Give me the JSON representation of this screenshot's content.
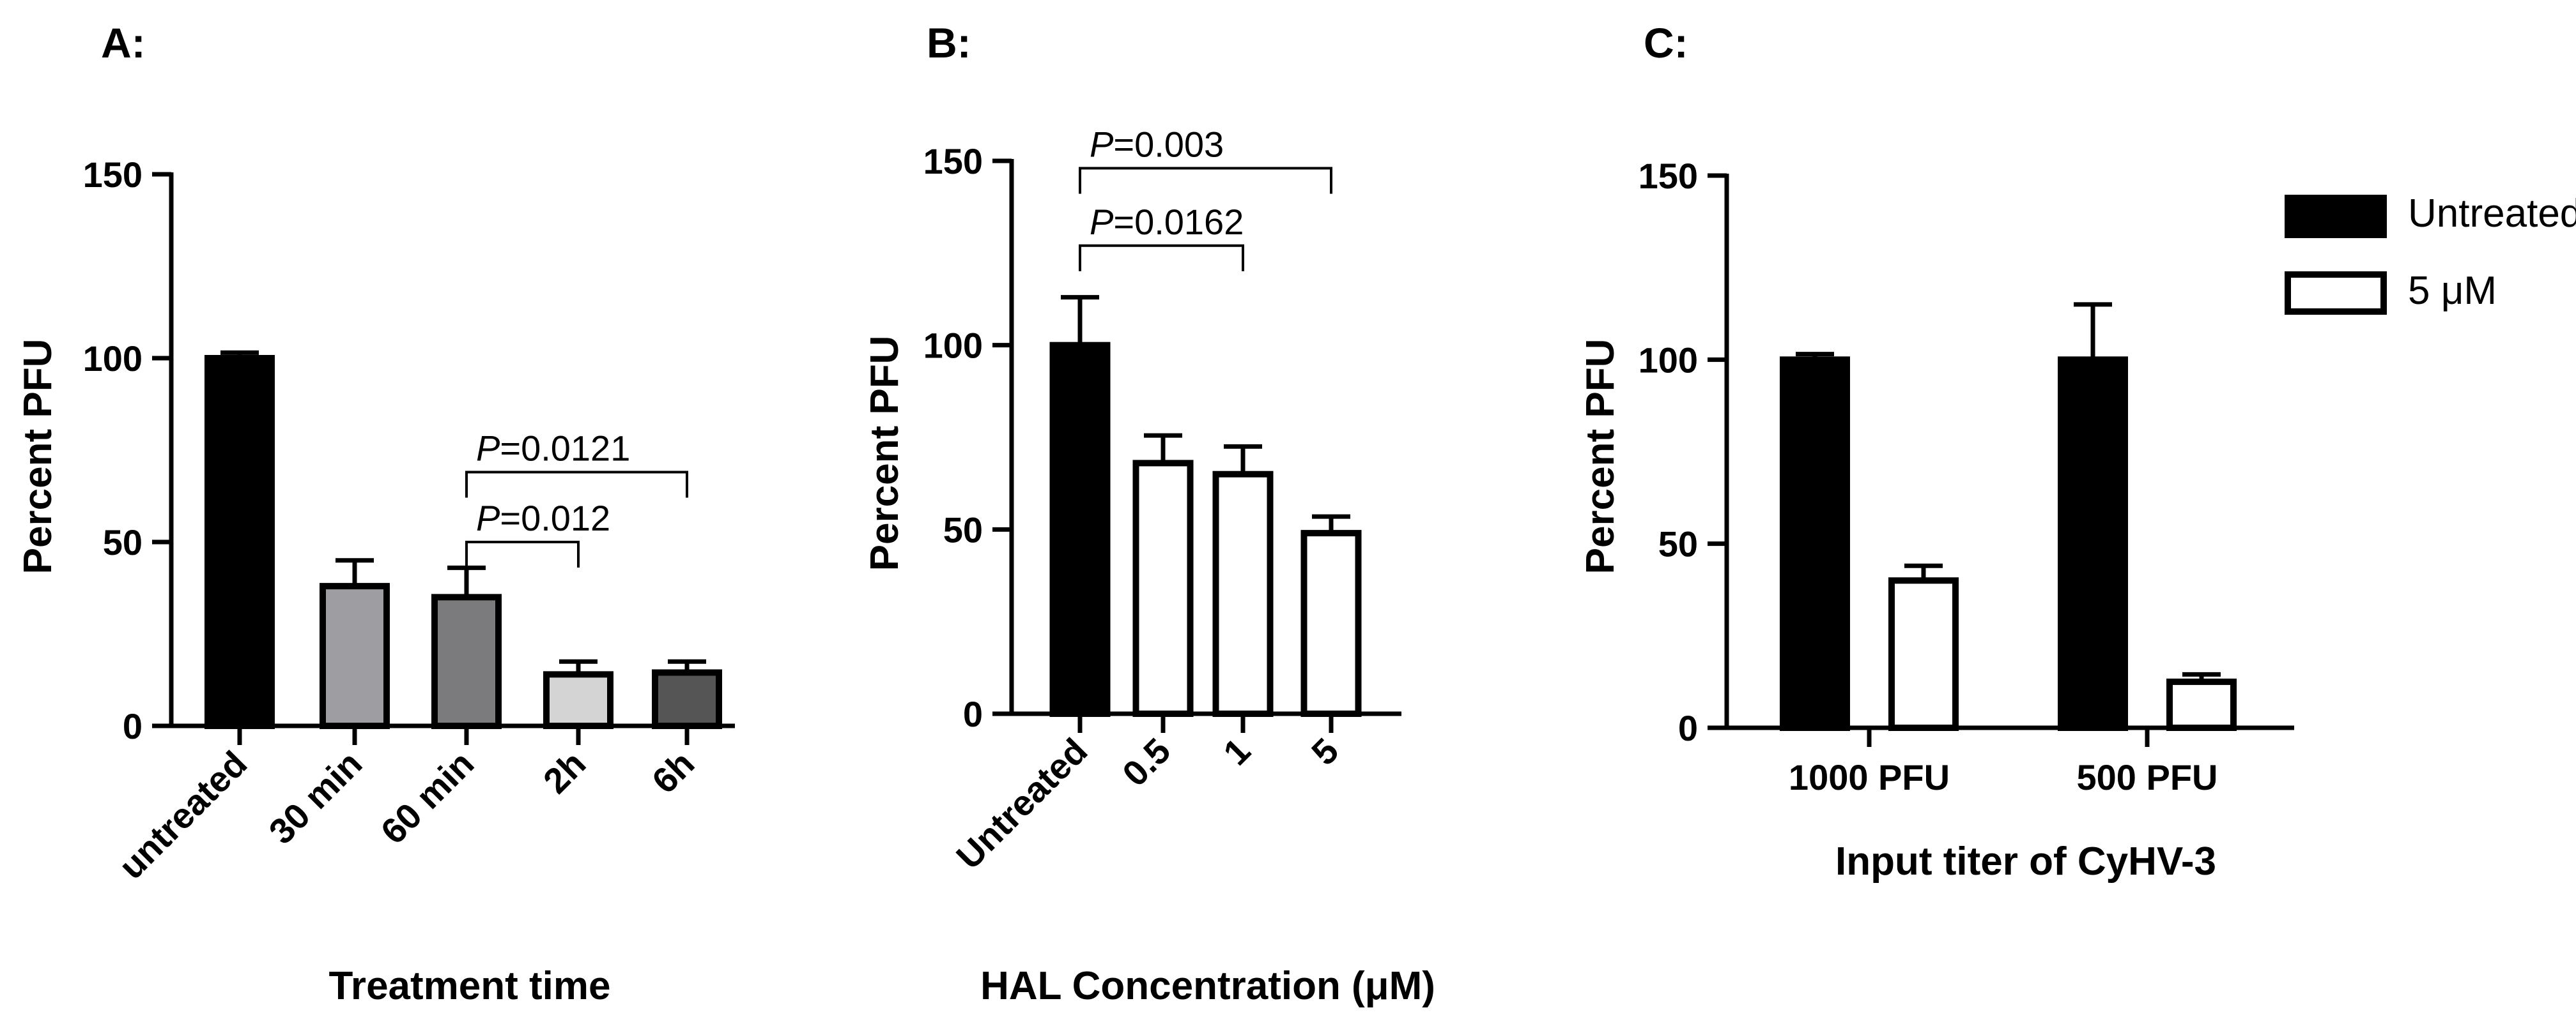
{
  "chart_data": [
    {
      "panel": "A:",
      "type": "bar",
      "xlabel": "Treatment time",
      "ylabel": "Percent PFU",
      "ylim": [
        0,
        150
      ],
      "yticks": [
        0,
        50,
        100,
        150
      ],
      "categories": [
        "untreated",
        "30 min",
        "60 min",
        "2h",
        "6h"
      ],
      "values": [
        100,
        38,
        35,
        14,
        14.5
      ],
      "errors": [
        1.5,
        7,
        8,
        3.5,
        3
      ],
      "fills": [
        "#000000",
        "#9e9ea2",
        "#7b7b7d",
        "#d4d4d4",
        "#555555"
      ],
      "annotations": [
        {
          "p_label": "P",
          "value": "=0.0121",
          "from": 2,
          "to": 4,
          "level": 69
        },
        {
          "p_label": "P",
          "value": "=0.012",
          "from": 2,
          "to": 3,
          "level": 50
        }
      ]
    },
    {
      "panel": "B:",
      "type": "bar",
      "xlabel": "HAL Concentration (μM)",
      "ylabel": "Percent PFU",
      "ylim": [
        0,
        150
      ],
      "yticks": [
        0,
        50,
        100,
        150
      ],
      "categories": [
        "Untreated",
        "0.5",
        "1",
        "5"
      ],
      "values": [
        100,
        68,
        65,
        49
      ],
      "errors": [
        13,
        7.5,
        7.5,
        4.5
      ],
      "fills": [
        "#000000",
        "#ffffff",
        "#ffffff",
        "#ffffff"
      ],
      "annotations": [
        {
          "p_label": "P",
          "value": "=0.003",
          "from": 0,
          "to": 3,
          "level": 148
        },
        {
          "p_label": "P",
          "value": "=0.0162",
          "from": 0,
          "to": 2,
          "level": 127
        }
      ]
    },
    {
      "panel": "C:",
      "type": "bar",
      "xlabel": "Input titer of CyHV-3",
      "ylabel": "Percent PFU",
      "ylim": [
        0,
        150
      ],
      "yticks": [
        0,
        50,
        100,
        150
      ],
      "categories": [
        "1000 PFU",
        "500 PFU"
      ],
      "series": [
        {
          "name": "Untreated",
          "values": [
            100,
            100
          ],
          "errors": [
            1.5,
            15
          ],
          "fill": "#000000"
        },
        {
          "name": "5 μM",
          "values": [
            40,
            12.5
          ],
          "errors": [
            4,
            2
          ],
          "fill": "#ffffff"
        }
      ],
      "legend": "right"
    }
  ]
}
